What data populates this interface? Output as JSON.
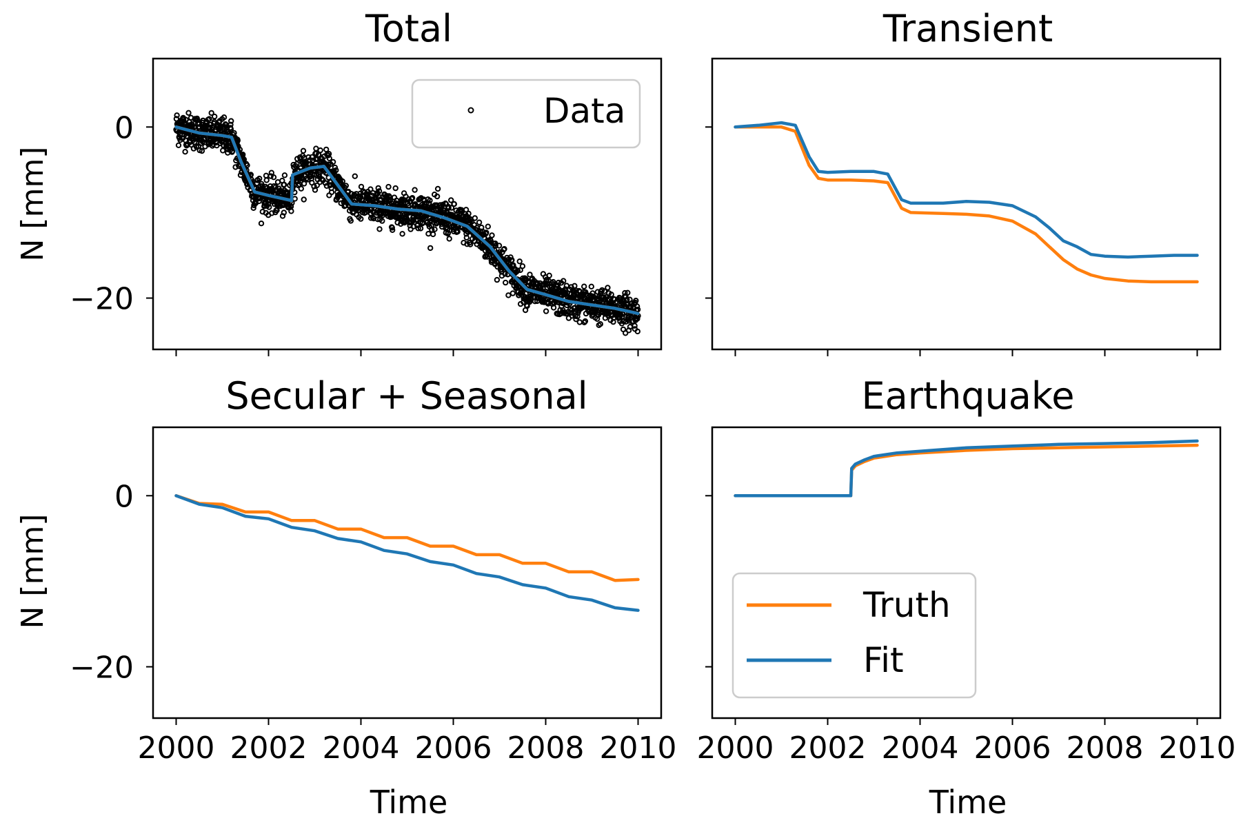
{
  "figure": {
    "ylabel": "N [mm]",
    "xlabel": "Time",
    "colors": {
      "truth": "#ff7f0e",
      "fit": "#1f77b4",
      "data": "#000000"
    },
    "legend_total": {
      "data_label": "Data"
    },
    "legend_earthquake": {
      "truth_label": "Truth",
      "fit_label": "Fit"
    }
  },
  "chart_data": [
    {
      "type": "scatter",
      "title": "Total",
      "xlabel": "",
      "ylabel": "N [mm]",
      "xlim": [
        1999.5,
        2010.5
      ],
      "ylim": [
        -26,
        8
      ],
      "xticks": [
        2000,
        2002,
        2004,
        2006,
        2008,
        2010
      ],
      "yticks": [
        0,
        -20
      ],
      "ytick_labels": [
        "0",
        "−20"
      ],
      "xtick_labels_shown": false,
      "grid": false,
      "legend": "top-right",
      "series": [
        {
          "name": "Data",
          "kind": "points",
          "noise_mm": 1.0,
          "x": [
            2000.0,
            2000.5,
            2001.0,
            2001.2,
            2001.4,
            2001.7,
            2002.0,
            2002.5,
            2002.52,
            2002.9,
            2003.2,
            2003.5,
            2003.8,
            2004.3,
            2004.8,
            2005.3,
            2005.8,
            2006.3,
            2006.8,
            2007.2,
            2007.6,
            2008.0,
            2008.5,
            2009.0,
            2009.5,
            2010.0
          ],
          "y": [
            0.0,
            -0.7,
            -1.0,
            -1.2,
            -4.0,
            -7.6,
            -8.0,
            -8.6,
            -5.6,
            -4.8,
            -4.6,
            -6.8,
            -9.0,
            -9.2,
            -9.6,
            -9.8,
            -10.6,
            -11.6,
            -14.0,
            -16.8,
            -19.0,
            -19.6,
            -20.4,
            -20.8,
            -21.2,
            -21.8
          ]
        },
        {
          "name": "",
          "color_key": "truth",
          "x": [
            2000.0,
            2000.5,
            2001.0,
            2001.2,
            2001.4,
            2001.7,
            2002.0,
            2002.5,
            2002.52,
            2002.9,
            2003.2,
            2003.5,
            2003.8,
            2004.3,
            2004.8,
            2005.3,
            2005.8,
            2006.3,
            2006.8,
            2007.2,
            2007.6,
            2008.0,
            2008.5,
            2009.0,
            2009.5,
            2010.0
          ],
          "y": [
            0.0,
            -0.7,
            -1.0,
            -1.2,
            -4.0,
            -7.6,
            -8.0,
            -8.6,
            -5.6,
            -4.8,
            -4.6,
            -6.8,
            -9.0,
            -9.2,
            -9.6,
            -9.8,
            -10.6,
            -11.6,
            -14.0,
            -16.8,
            -19.0,
            -19.6,
            -20.4,
            -20.8,
            -21.2,
            -21.8
          ]
        },
        {
          "name": "",
          "color_key": "fit",
          "x": [
            2000.0,
            2000.5,
            2001.0,
            2001.2,
            2001.4,
            2001.7,
            2002.0,
            2002.5,
            2002.52,
            2002.9,
            2003.2,
            2003.5,
            2003.8,
            2004.3,
            2004.8,
            2005.3,
            2005.8,
            2006.3,
            2006.8,
            2007.2,
            2007.6,
            2008.0,
            2008.5,
            2009.0,
            2009.5,
            2010.0
          ],
          "y": [
            0.0,
            -0.7,
            -1.0,
            -1.2,
            -4.0,
            -7.6,
            -8.0,
            -8.6,
            -5.6,
            -4.8,
            -4.6,
            -6.8,
            -9.0,
            -9.2,
            -9.6,
            -9.8,
            -10.6,
            -11.6,
            -14.0,
            -16.8,
            -19.0,
            -19.6,
            -20.4,
            -20.8,
            -21.2,
            -21.8
          ]
        }
      ]
    },
    {
      "type": "line",
      "title": "Transient",
      "xlabel": "",
      "ylabel": "",
      "xlim": [
        1999.5,
        2010.5
      ],
      "ylim": [
        -26,
        8
      ],
      "xticks": [
        2000,
        2002,
        2004,
        2006,
        2008,
        2010
      ],
      "yticks": [
        0,
        -20
      ],
      "ytick_labels": [],
      "xtick_labels_shown": false,
      "grid": false,
      "legend": "none",
      "series": [
        {
          "name": "",
          "color_key": "truth",
          "x": [
            2000.0,
            2000.5,
            2001.0,
            2001.3,
            2001.6,
            2001.8,
            2002.0,
            2002.5,
            2003.0,
            2003.3,
            2003.6,
            2003.8,
            2004.5,
            2005.0,
            2005.5,
            2006.0,
            2006.5,
            2006.8,
            2007.1,
            2007.4,
            2007.7,
            2008.0,
            2008.5,
            2009.0,
            2009.5,
            2010.0
          ],
          "y": [
            0.0,
            0.0,
            0.0,
            -0.5,
            -4.5,
            -6.0,
            -6.2,
            -6.2,
            -6.3,
            -6.5,
            -9.5,
            -10.0,
            -10.1,
            -10.2,
            -10.4,
            -11.0,
            -12.5,
            -14.0,
            -15.5,
            -16.6,
            -17.3,
            -17.7,
            -18.0,
            -18.1,
            -18.1,
            -18.1
          ]
        },
        {
          "name": "",
          "color_key": "fit",
          "x": [
            2000.0,
            2000.5,
            2001.0,
            2001.3,
            2001.6,
            2001.8,
            2002.0,
            2002.5,
            2003.0,
            2003.3,
            2003.6,
            2003.8,
            2004.5,
            2005.0,
            2005.5,
            2006.0,
            2006.5,
            2006.8,
            2007.1,
            2007.4,
            2007.7,
            2008.0,
            2008.5,
            2009.0,
            2009.5,
            2010.0
          ],
          "y": [
            0.0,
            0.2,
            0.5,
            0.2,
            -3.5,
            -5.2,
            -5.3,
            -5.2,
            -5.2,
            -5.5,
            -8.5,
            -8.9,
            -8.9,
            -8.7,
            -8.8,
            -9.2,
            -10.5,
            -11.8,
            -13.3,
            -14.0,
            -14.9,
            -15.1,
            -15.2,
            -15.1,
            -15.0,
            -15.0
          ]
        }
      ]
    },
    {
      "type": "line",
      "title": "Secular + Seasonal",
      "xlabel": "Time",
      "ylabel": "N [mm]",
      "xlim": [
        1999.5,
        2010.5
      ],
      "ylim": [
        -26,
        8
      ],
      "xticks": [
        2000,
        2002,
        2004,
        2006,
        2008,
        2010
      ],
      "yticks": [
        0,
        -20
      ],
      "ytick_labels": [
        "0",
        "−20"
      ],
      "xtick_labels_shown": true,
      "xtick_labels": [
        "2000",
        "2002",
        "2004",
        "2006",
        "2008",
        "2010"
      ],
      "grid": false,
      "legend": "none",
      "series": [
        {
          "name": "",
          "color_key": "truth",
          "x": [
            2000.0,
            2000.5,
            2001.0,
            2001.5,
            2002.0,
            2002.5,
            2003.0,
            2003.5,
            2004.0,
            2004.5,
            2005.0,
            2005.5,
            2006.0,
            2006.5,
            2007.0,
            2007.5,
            2008.0,
            2008.5,
            2009.0,
            2009.5,
            2010.0
          ],
          "y": [
            0.0,
            -0.9,
            -1.0,
            -1.9,
            -1.9,
            -2.9,
            -2.9,
            -3.9,
            -3.9,
            -4.9,
            -4.9,
            -5.9,
            -5.9,
            -6.9,
            -6.9,
            -7.9,
            -7.9,
            -8.9,
            -8.9,
            -9.9,
            -9.8
          ]
        },
        {
          "name": "",
          "color_key": "fit",
          "x": [
            2000.0,
            2000.5,
            2001.0,
            2001.5,
            2002.0,
            2002.5,
            2003.0,
            2003.5,
            2004.0,
            2004.5,
            2005.0,
            2005.5,
            2006.0,
            2006.5,
            2007.0,
            2007.5,
            2008.0,
            2008.5,
            2009.0,
            2009.5,
            2010.0
          ],
          "y": [
            0.0,
            -1.0,
            -1.4,
            -2.4,
            -2.7,
            -3.7,
            -4.1,
            -5.0,
            -5.4,
            -6.4,
            -6.8,
            -7.7,
            -8.1,
            -9.1,
            -9.5,
            -10.4,
            -10.8,
            -11.8,
            -12.2,
            -13.1,
            -13.4
          ]
        }
      ]
    },
    {
      "type": "line",
      "title": "Earthquake",
      "xlabel": "Time",
      "ylabel": "",
      "xlim": [
        1999.5,
        2010.5
      ],
      "ylim": [
        -26,
        8
      ],
      "xticks": [
        2000,
        2002,
        2004,
        2006,
        2008,
        2010
      ],
      "yticks": [
        0,
        -20
      ],
      "ytick_labels": [],
      "xtick_labels_shown": true,
      "xtick_labels": [
        "2000",
        "2002",
        "2004",
        "2006",
        "2008",
        "2010"
      ],
      "grid": false,
      "legend": "lower-left",
      "series": [
        {
          "name": "Truth",
          "color_key": "truth",
          "x": [
            2000.0,
            2002.5,
            2002.52,
            2002.6,
            2002.8,
            2003.0,
            2003.5,
            2004.0,
            2005.0,
            2006.0,
            2007.0,
            2008.0,
            2009.0,
            2010.0
          ],
          "y": [
            0.0,
            0.0,
            3.0,
            3.5,
            4.0,
            4.4,
            4.8,
            5.0,
            5.3,
            5.5,
            5.6,
            5.7,
            5.8,
            5.9
          ]
        },
        {
          "name": "Fit",
          "color_key": "fit",
          "x": [
            2000.0,
            2002.5,
            2002.52,
            2002.6,
            2002.8,
            2003.0,
            2003.5,
            2004.0,
            2005.0,
            2006.0,
            2007.0,
            2008.0,
            2009.0,
            2010.0
          ],
          "y": [
            0.0,
            0.0,
            3.2,
            3.7,
            4.2,
            4.6,
            5.0,
            5.2,
            5.6,
            5.8,
            6.0,
            6.1,
            6.2,
            6.4
          ]
        }
      ]
    }
  ]
}
